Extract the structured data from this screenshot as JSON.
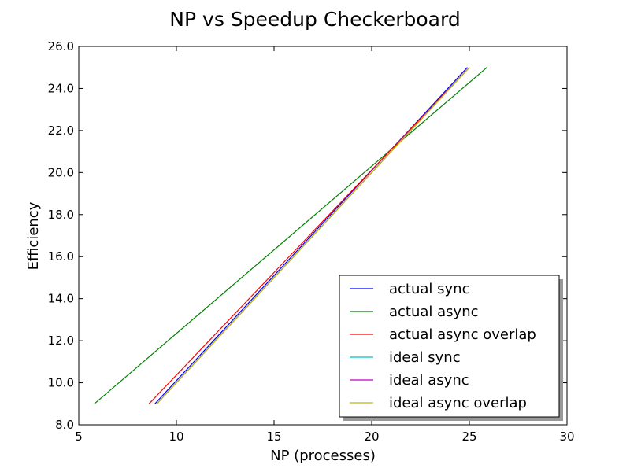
{
  "chart_data": {
    "type": "line",
    "title": "NP vs Speedup Checkerboard",
    "xlabel": "NP (processes)",
    "ylabel": "Efficiency",
    "xlim": [
      5,
      30
    ],
    "ylim": [
      8.0,
      26.0
    ],
    "x_ticks": [
      5,
      10,
      15,
      20,
      25,
      30
    ],
    "x_tick_labels": [
      "5",
      "10",
      "15",
      "20",
      "25",
      "30"
    ],
    "y_ticks": [
      8,
      10,
      12,
      14,
      16,
      18,
      20,
      22,
      24,
      26
    ],
    "y_tick_labels": [
      "8.0",
      "10.0",
      "12.0",
      "14.0",
      "16.0",
      "18.0",
      "20.0",
      "22.0",
      "24.0",
      "26.0"
    ],
    "grid": false,
    "legend_position": "lower right",
    "series": [
      {
        "name": "actual sync",
        "color": "#0000ff",
        "x": [
          8.9,
          24.9
        ],
        "y": [
          9,
          25
        ]
      },
      {
        "name": "actual async",
        "color": "#008000",
        "x": [
          5.8,
          25.9
        ],
        "y": [
          9,
          25
        ]
      },
      {
        "name": "actual async overlap",
        "color": "#ff0000",
        "x": [
          8.6,
          25.0
        ],
        "y": [
          9,
          25
        ]
      },
      {
        "name": "ideal sync",
        "color": "#00bfbf",
        "x": [
          9.0,
          25.0
        ],
        "y": [
          9,
          25
        ]
      },
      {
        "name": "ideal async",
        "color": "#bf00bf",
        "x": [
          9.0,
          25.0
        ],
        "y": [
          9,
          25
        ]
      },
      {
        "name": "ideal async overlap",
        "color": "#bfbf00",
        "x": [
          9.0,
          25.0
        ],
        "y": [
          9,
          25
        ]
      }
    ]
  }
}
